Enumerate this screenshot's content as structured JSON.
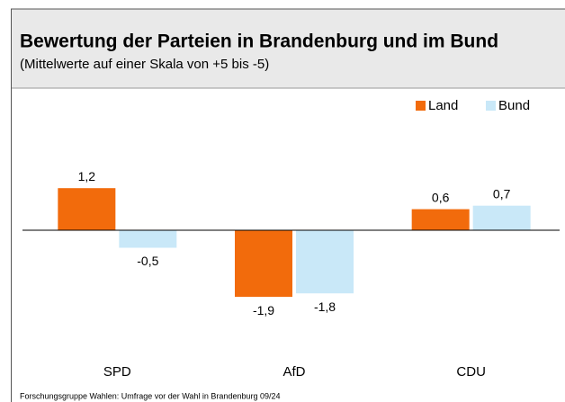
{
  "chart_data": {
    "type": "bar",
    "title": "Bewertung der Parteien in Brandenburg und im Bund",
    "subtitle": "(Mittelwerte auf einer Skala von +5 bis -5)",
    "source": "Forschungsgruppe Wahlen: Umfrage vor der Wahl in Brandenburg 09/24",
    "categories": [
      "SPD",
      "AfD",
      "CDU"
    ],
    "series": [
      {
        "name": "Land",
        "color": "#f26b0c",
        "values": [
          1.2,
          -1.9,
          0.6
        ],
        "value_labels": [
          "1,2",
          "-1,9",
          "0,6"
        ]
      },
      {
        "name": "Bund",
        "color": "#c9e8f8",
        "values": [
          -0.5,
          -1.8,
          0.7
        ],
        "value_labels": [
          "-0,5",
          "-1,8",
          "0,7"
        ]
      }
    ],
    "ylim": [
      -2.5,
      2.5
    ],
    "legend": "top-right"
  }
}
